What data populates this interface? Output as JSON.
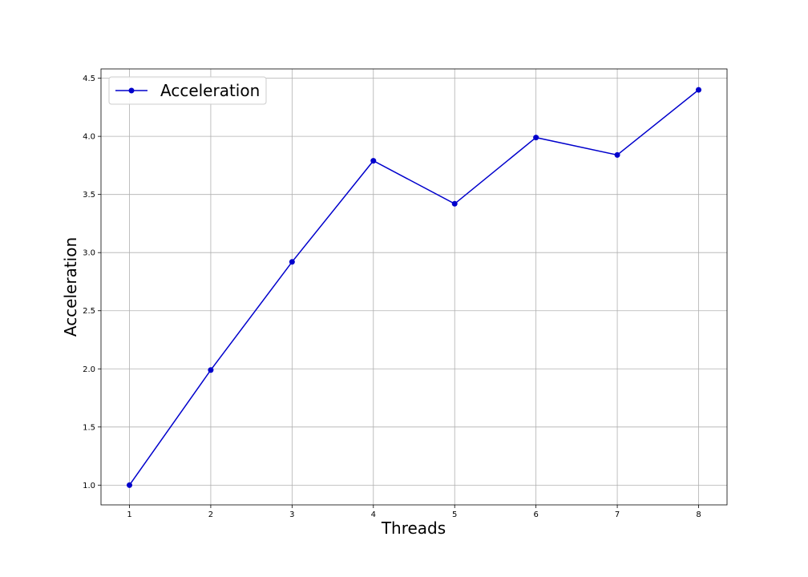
{
  "chart_data": {
    "type": "line",
    "title": "",
    "xlabel": "Threads",
    "ylabel": "Acceleration",
    "xlim": [
      0.65,
      8.35
    ],
    "ylim": [
      0.83,
      4.58
    ],
    "xticks": [
      1,
      2,
      3,
      4,
      5,
      6,
      7,
      8
    ],
    "xtick_labels": [
      "1",
      "2",
      "3",
      "4",
      "5",
      "6",
      "7",
      "8"
    ],
    "yticks": [
      1.0,
      1.5,
      2.0,
      2.5,
      3.0,
      3.5,
      4.0,
      4.5
    ],
    "ytick_labels": [
      "1.0",
      "1.5",
      "2.0",
      "2.5",
      "3.0",
      "3.5",
      "4.0",
      "4.5"
    ],
    "grid": true,
    "legend_position": "top-left",
    "series": [
      {
        "name": "Acceleration",
        "color": "#0000cc",
        "marker": "circle",
        "x": [
          1,
          2,
          3,
          4,
          5,
          6,
          7,
          8
        ],
        "y": [
          1.0,
          1.99,
          2.92,
          3.79,
          3.42,
          3.99,
          3.84,
          4.4
        ]
      }
    ]
  }
}
